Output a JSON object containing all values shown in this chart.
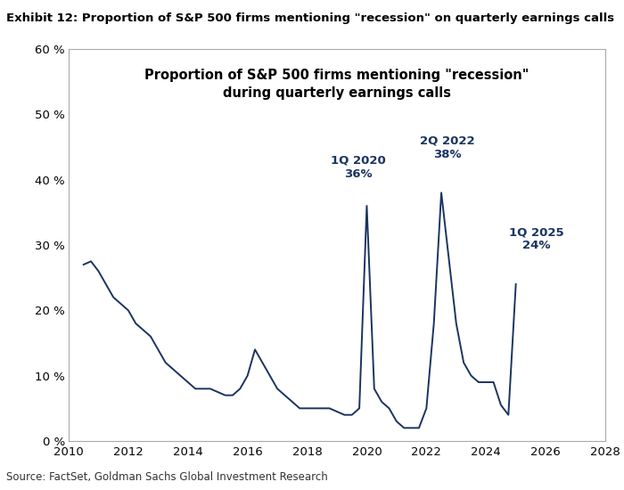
{
  "title": "Exhibit 12: Proportion of S&P 500 firms mentioning \"recession\" on quarterly earnings calls",
  "inner_title_line1": "Proportion of S&P 500 firms mentioning \"recession\"",
  "inner_title_line2": "during quarterly earnings calls",
  "source": "Source: FactSet, Goldman Sachs Global Investment Research",
  "line_color": "#1a3460",
  "background_color": "#ffffff",
  "plot_bg_color": "#ffffff",
  "xlim": [
    2010,
    2028
  ],
  "ylim": [
    0,
    60
  ],
  "yticks": [
    0,
    10,
    20,
    30,
    40,
    50,
    60
  ],
  "xticks": [
    2010,
    2012,
    2014,
    2016,
    2018,
    2020,
    2022,
    2024,
    2026,
    2028
  ],
  "ann_color": "#1a3460",
  "x": [
    2010.5,
    2010.75,
    2011.0,
    2011.25,
    2011.5,
    2011.75,
    2012.0,
    2012.25,
    2012.5,
    2012.75,
    2013.0,
    2013.25,
    2013.5,
    2013.75,
    2014.0,
    2014.25,
    2014.5,
    2014.75,
    2015.0,
    2015.25,
    2015.5,
    2015.75,
    2016.0,
    2016.25,
    2016.5,
    2016.75,
    2017.0,
    2017.25,
    2017.5,
    2017.75,
    2018.0,
    2018.25,
    2018.5,
    2018.75,
    2019.0,
    2019.25,
    2019.5,
    2019.75,
    2020.0,
    2020.25,
    2020.5,
    2020.75,
    2021.0,
    2021.25,
    2021.5,
    2021.75,
    2022.0,
    2022.25,
    2022.5,
    2022.75,
    2023.0,
    2023.25,
    2023.5,
    2023.75,
    2024.0,
    2024.25,
    2024.5,
    2024.75,
    2025.0
  ],
  "y": [
    27,
    27.5,
    26,
    24,
    22,
    21,
    20,
    18,
    17,
    16,
    14,
    12,
    11,
    10,
    9,
    8,
    8,
    8,
    7.5,
    7,
    7,
    8,
    10,
    14,
    12,
    10,
    8,
    7,
    6,
    5,
    5,
    5,
    5,
    5,
    4.5,
    4,
    4,
    5,
    36,
    8,
    6,
    5,
    3,
    2,
    2,
    2,
    5,
    18,
    38,
    28,
    18,
    12,
    10,
    9,
    9,
    9,
    5.5,
    4,
    24
  ]
}
